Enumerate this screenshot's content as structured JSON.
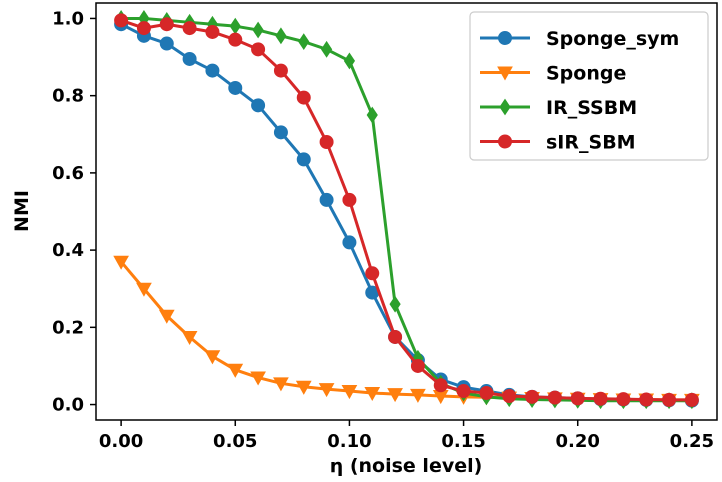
{
  "chart_data": {
    "type": "line",
    "title": "",
    "xlabel": "η (noise level)",
    "ylabel": "NMI",
    "xlim": [
      -0.011,
      0.261
    ],
    "ylim": [
      -0.04,
      1.04
    ],
    "xticks": [
      "0.00",
      "0.05",
      "0.10",
      "0.15",
      "0.20",
      "0.25"
    ],
    "yticks": [
      "0.0",
      "0.2",
      "0.4",
      "0.6",
      "0.8",
      "1.0"
    ],
    "grid": false,
    "legend_position": "top-right",
    "x": [
      0.0,
      0.01,
      0.02,
      0.03,
      0.04,
      0.05,
      0.06,
      0.07,
      0.08,
      0.09,
      0.1,
      0.11,
      0.12,
      0.13,
      0.14,
      0.15,
      0.16,
      0.17,
      0.18,
      0.19,
      0.2,
      0.21,
      0.22,
      0.23,
      0.24,
      0.25
    ],
    "series": [
      {
        "name": "Sponge_sym",
        "color": "#1f77b4",
        "marker": "circle",
        "values": [
          0.985,
          0.955,
          0.935,
          0.895,
          0.865,
          0.82,
          0.775,
          0.705,
          0.635,
          0.53,
          0.42,
          0.29,
          0.175,
          0.115,
          0.065,
          0.045,
          0.035,
          0.025,
          0.02,
          0.018,
          0.016,
          0.014,
          0.013,
          0.012,
          0.011,
          0.01
        ]
      },
      {
        "name": "Sponge",
        "color": "#ff7f0e",
        "marker": "triangle-down",
        "values": [
          0.37,
          0.3,
          0.23,
          0.175,
          0.125,
          0.09,
          0.07,
          0.055,
          0.046,
          0.04,
          0.035,
          0.03,
          0.027,
          0.025,
          0.022,
          0.02,
          0.019,
          0.018,
          0.017,
          0.016,
          0.015,
          0.014,
          0.013,
          0.013,
          0.012,
          0.012
        ]
      },
      {
        "name": "IR_SSBM",
        "color": "#2ca02c",
        "marker": "diamond",
        "values": [
          1.0,
          1.0,
          0.995,
          0.99,
          0.985,
          0.98,
          0.97,
          0.955,
          0.94,
          0.92,
          0.89,
          0.75,
          0.26,
          0.12,
          0.055,
          0.03,
          0.02,
          0.015,
          0.013,
          0.012,
          0.011,
          0.01,
          0.01,
          0.01,
          0.01,
          0.01
        ]
      },
      {
        "name": "sIR_SBM",
        "color": "#d62728",
        "marker": "circle",
        "values": [
          0.995,
          0.975,
          0.985,
          0.975,
          0.965,
          0.945,
          0.92,
          0.865,
          0.795,
          0.68,
          0.53,
          0.34,
          0.175,
          0.1,
          0.05,
          0.035,
          0.03,
          0.022,
          0.02,
          0.018,
          0.016,
          0.015,
          0.014,
          0.013,
          0.012,
          0.012
        ]
      }
    ]
  }
}
